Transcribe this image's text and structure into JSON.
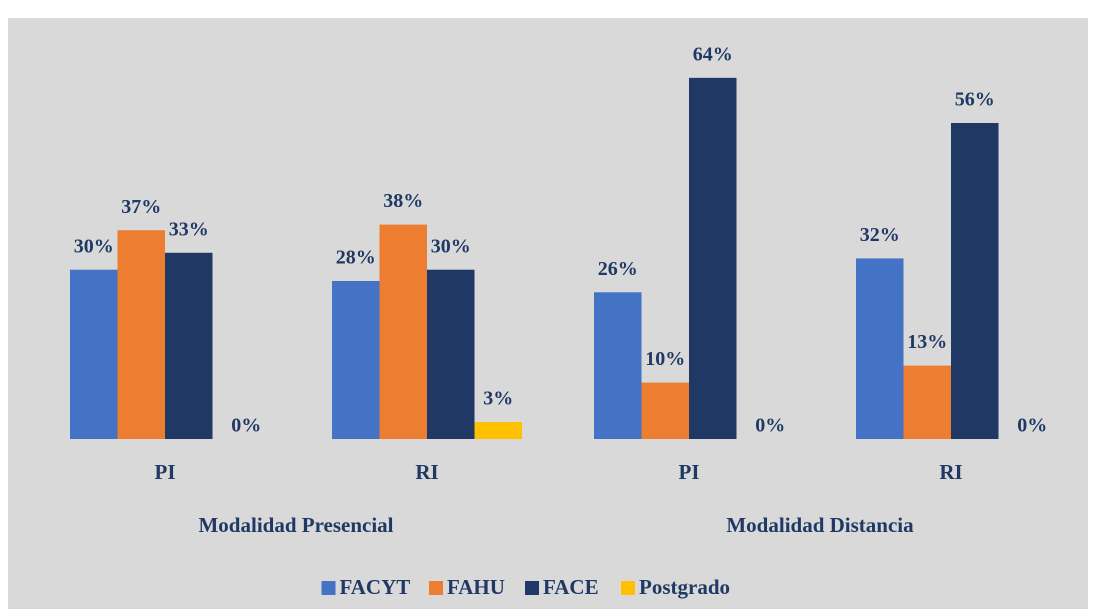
{
  "chart_data": {
    "type": "bar",
    "categories": [
      "PI",
      "RI",
      "PI",
      "RI"
    ],
    "category_groups": [
      "Modalidad Presencial",
      "Modalidad Distancia"
    ],
    "series": [
      {
        "name": "FACYT",
        "color": "#4472c4",
        "values": [
          30,
          28,
          26,
          32
        ],
        "value_labels": [
          "30%",
          "28%",
          "26%",
          "32%"
        ]
      },
      {
        "name": "FAHU",
        "color": "#ed7d31",
        "values": [
          37,
          38,
          10,
          13
        ],
        "value_labels": [
          "37%",
          "38%",
          "10%",
          "13%"
        ]
      },
      {
        "name": "FACE",
        "color": "#203864",
        "values": [
          33,
          30,
          64,
          56
        ],
        "value_labels": [
          "33%",
          "30%",
          "64%",
          "56%"
        ]
      },
      {
        "name": "Postgrado",
        "color": "#ffc000",
        "values": [
          0,
          3,
          0,
          0
        ],
        "value_labels": [
          "0%",
          "3%",
          "0%",
          "0%"
        ]
      }
    ],
    "ylim": [
      0,
      70
    ],
    "grid": false,
    "legend": "bottom"
  }
}
